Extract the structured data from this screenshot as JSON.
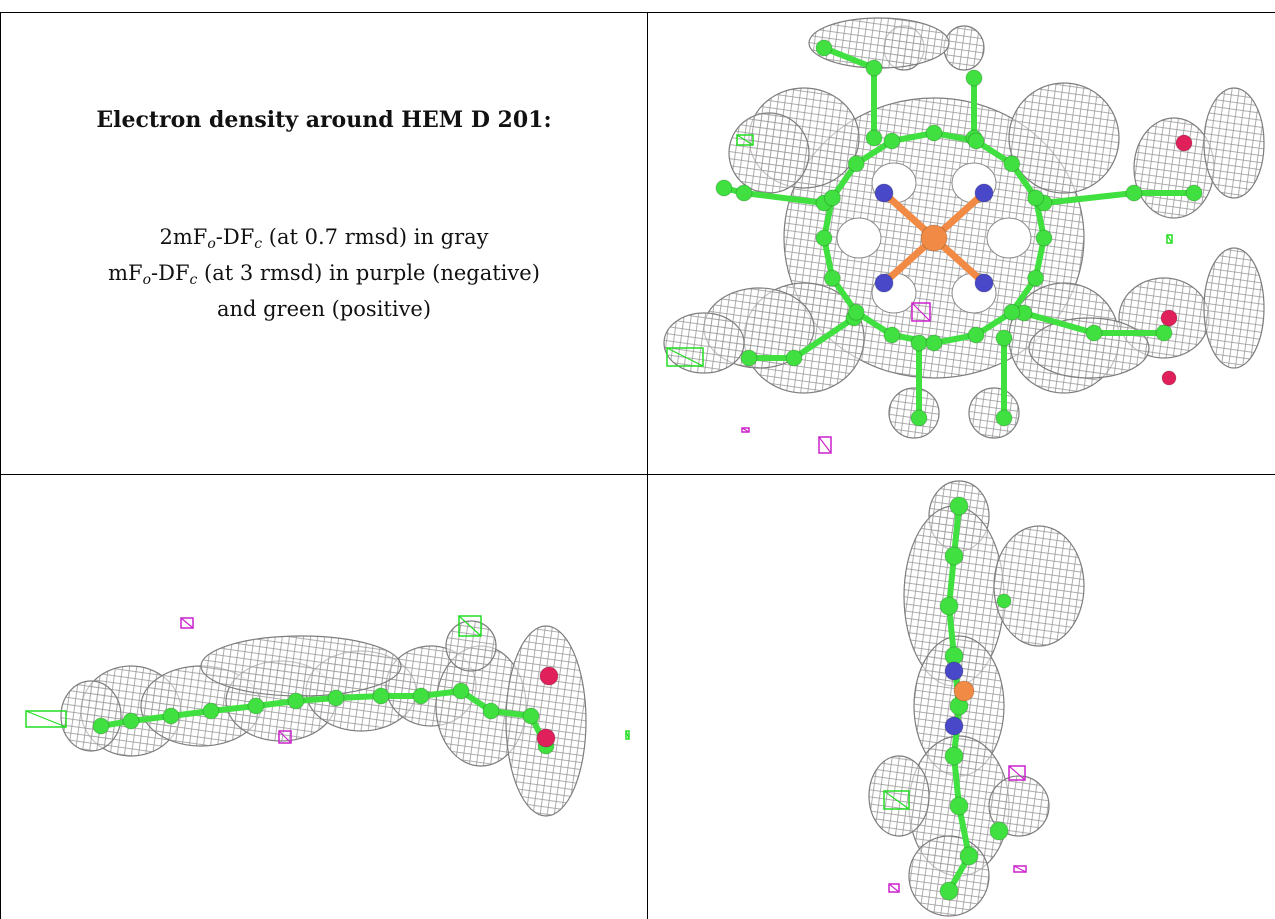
{
  "caption": {
    "title": "Electron density around HEM D 201:",
    "line1": {
      "lead": "2mF",
      "sub1": "o",
      "mid": "-DF",
      "sub2": "c",
      "rest": " (at 0.7 rmsd) in gray"
    },
    "line2": {
      "lead": "mF",
      "sub1": "o",
      "mid": "-DF",
      "sub2": "c",
      "rest": " (at 3 rmsd) in purple (negative)"
    },
    "line3": "and green (positive)"
  },
  "colors": {
    "mesh_gray": "#9a9a9a",
    "carbon_green": "#3fe03f",
    "nitrogen_blue": "#4848c8",
    "iron_orange": "#f08a45",
    "oxygen_red": "#e0205a",
    "negative_purple": "#cc22cc",
    "positive_green": "#22dd22"
  },
  "panels": [
    {
      "view": "top"
    },
    {
      "view": "side"
    },
    {
      "view": "end"
    }
  ]
}
